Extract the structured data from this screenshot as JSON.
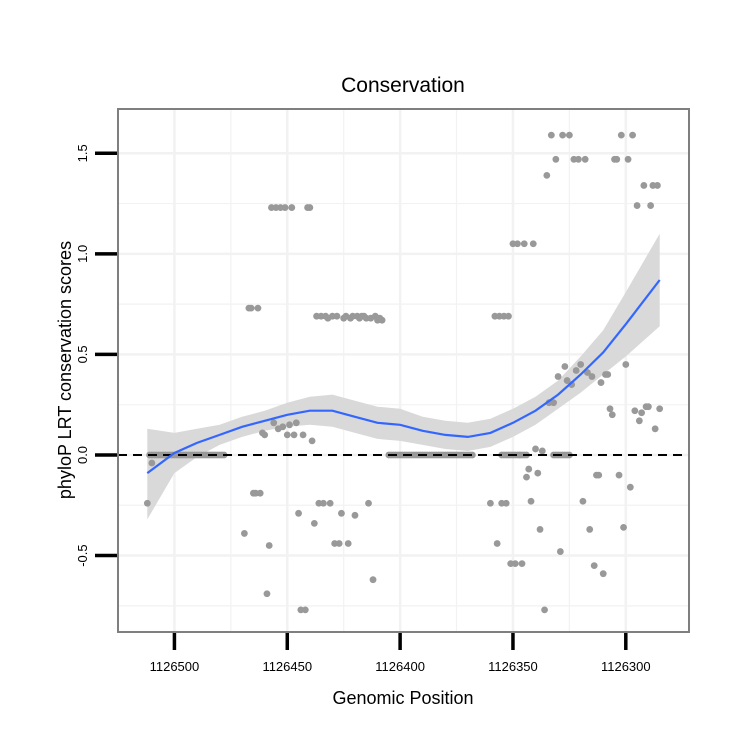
{
  "chart_data": {
    "type": "scatter",
    "title": "Conservation",
    "xlabel": "Genomic Position",
    "ylabel": "phyloP LRT conservation scores",
    "x_reversed": true,
    "xlim": [
      1126525,
      1126272
    ],
    "ylim": [
      -0.88,
      1.72
    ],
    "x_ticks": [
      1126500,
      1126450,
      1126400,
      1126350,
      1126300
    ],
    "x_tick_labels": [
      "1126500",
      "1126450",
      "1126400",
      "1126350",
      "1126300"
    ],
    "y_ticks": [
      -0.5,
      0,
      0.5,
      1,
      1.5
    ],
    "y_tick_labels": [
      "-0.5",
      "0.0",
      "0.5",
      "1.0",
      "1.5"
    ],
    "grid": true,
    "reference_line": {
      "y": 0,
      "style": "dashed",
      "color": "#000000"
    },
    "colors": {
      "points": "#999999",
      "smooth": "#3366ff",
      "ribbon": "#d9d9d9",
      "panel_border": "#7f7f7f",
      "grid": "#f2f2f2"
    },
    "zero_runs": [
      [
        1126511,
        1126478
      ],
      [
        1126405,
        1126368
      ],
      [
        1126355,
        1126344
      ],
      [
        1126332,
        1126325
      ]
    ],
    "points": [
      [
        1126512,
        -0.24
      ],
      [
        1126510,
        -0.04
      ],
      [
        1126469,
        -0.39
      ],
      [
        1126467,
        0.73
      ],
      [
        1126466,
        0.73
      ],
      [
        1126465,
        -0.19
      ],
      [
        1126464,
        -0.19
      ],
      [
        1126463,
        0.73
      ],
      [
        1126462,
        -0.19
      ],
      [
        1126461,
        0.11
      ],
      [
        1126460,
        0.1
      ],
      [
        1126459,
        -0.69
      ],
      [
        1126458,
        -0.45
      ],
      [
        1126457,
        1.23
      ],
      [
        1126456,
        0.16
      ],
      [
        1126455,
        1.23
      ],
      [
        1126454,
        0.13
      ],
      [
        1126453,
        1.23
      ],
      [
        1126452,
        0.14
      ],
      [
        1126451,
        1.23
      ],
      [
        1126450,
        0.1
      ],
      [
        1126449,
        0.15
      ],
      [
        1126448,
        1.23
      ],
      [
        1126447,
        0.1
      ],
      [
        1126446,
        0.16
      ],
      [
        1126445,
        -0.29
      ],
      [
        1126444,
        -0.77
      ],
      [
        1126443,
        0.1
      ],
      [
        1126442,
        -0.77
      ],
      [
        1126441,
        1.23
      ],
      [
        1126440,
        1.23
      ],
      [
        1126439,
        0.07
      ],
      [
        1126438,
        -0.34
      ],
      [
        1126437,
        0.69
      ],
      [
        1126436,
        -0.24
      ],
      [
        1126435,
        0.69
      ],
      [
        1126434,
        -0.24
      ],
      [
        1126433,
        0.69
      ],
      [
        1126432,
        0.68
      ],
      [
        1126431,
        -0.24
      ],
      [
        1126430,
        0.69
      ],
      [
        1126429,
        -0.44
      ],
      [
        1126428,
        0.69
      ],
      [
        1126427,
        -0.44
      ],
      [
        1126426,
        -0.29
      ],
      [
        1126425,
        0.68
      ],
      [
        1126424,
        0.69
      ],
      [
        1126423,
        -0.44
      ],
      [
        1126422,
        0.68
      ],
      [
        1126421,
        0.69
      ],
      [
        1126420,
        -0.3
      ],
      [
        1126419,
        0.69
      ],
      [
        1126418,
        0.68
      ],
      [
        1126417,
        0.69
      ],
      [
        1126416,
        0.69
      ],
      [
        1126415,
        0.68
      ],
      [
        1126414,
        -0.24
      ],
      [
        1126413,
        0.68
      ],
      [
        1126412,
        -0.62
      ],
      [
        1126411,
        0.69
      ],
      [
        1126410,
        0.67
      ],
      [
        1126409,
        0.68
      ],
      [
        1126408,
        0.67
      ],
      [
        1126360,
        -0.24
      ],
      [
        1126358,
        0.69
      ],
      [
        1126357,
        -0.44
      ],
      [
        1126356,
        0.69
      ],
      [
        1126355,
        -0.24
      ],
      [
        1126354,
        0.69
      ],
      [
        1126353,
        -0.24
      ],
      [
        1126352,
        0.69
      ],
      [
        1126351,
        -0.54
      ],
      [
        1126350,
        1.05
      ],
      [
        1126349,
        -0.54
      ],
      [
        1126348,
        1.05
      ],
      [
        1126347,
        0.0
      ],
      [
        1126346,
        -0.54
      ],
      [
        1126345,
        1.05
      ],
      [
        1126344,
        -0.11
      ],
      [
        1126343,
        -0.07
      ],
      [
        1126342,
        -0.23
      ],
      [
        1126341,
        1.05
      ],
      [
        1126340,
        0.03
      ],
      [
        1126339,
        -0.09
      ],
      [
        1126338,
        -0.37
      ],
      [
        1126337,
        0.02
      ],
      [
        1126336,
        -0.77
      ],
      [
        1126335,
        1.39
      ],
      [
        1126334,
        0.26
      ],
      [
        1126333,
        1.59
      ],
      [
        1126332,
        0.26
      ],
      [
        1126331,
        1.47
      ],
      [
        1126330,
        0.39
      ],
      [
        1126329,
        -0.48
      ],
      [
        1126328,
        1.59
      ],
      [
        1126327,
        0.44
      ],
      [
        1126326,
        0.37
      ],
      [
        1126325,
        1.59
      ],
      [
        1126324,
        0.35
      ],
      [
        1126323,
        1.47
      ],
      [
        1126322,
        0.42
      ],
      [
        1126321,
        1.47
      ],
      [
        1126320,
        0.45
      ],
      [
        1126319,
        -0.23
      ],
      [
        1126318,
        1.47
      ],
      [
        1126317,
        0.41
      ],
      [
        1126316,
        -0.37
      ],
      [
        1126315,
        0.39
      ],
      [
        1126314,
        -0.55
      ],
      [
        1126313,
        -0.1
      ],
      [
        1126312,
        -0.1
      ],
      [
        1126311,
        0.36
      ],
      [
        1126310,
        -0.59
      ],
      [
        1126309,
        0.4
      ],
      [
        1126308,
        0.4
      ],
      [
        1126307,
        0.23
      ],
      [
        1126306,
        0.2
      ],
      [
        1126305,
        1.47
      ],
      [
        1126304,
        1.47
      ],
      [
        1126303,
        -0.1
      ],
      [
        1126302,
        1.59
      ],
      [
        1126301,
        -0.36
      ],
      [
        1126300,
        0.45
      ],
      [
        1126299,
        1.47
      ],
      [
        1126298,
        -0.16
      ],
      [
        1126297,
        1.59
      ],
      [
        1126296,
        0.22
      ],
      [
        1126295,
        1.24
      ],
      [
        1126294,
        0.17
      ],
      [
        1126293,
        0.21
      ],
      [
        1126292,
        1.34
      ],
      [
        1126291,
        0.24
      ],
      [
        1126290,
        0.24
      ],
      [
        1126289,
        1.24
      ],
      [
        1126288,
        1.34
      ],
      [
        1126287,
        0.13
      ],
      [
        1126286,
        1.34
      ],
      [
        1126285,
        0.23
      ]
    ],
    "smooth_line": {
      "x": [
        1126512,
        1126500,
        1126490,
        1126480,
        1126470,
        1126460,
        1126450,
        1126440,
        1126430,
        1126420,
        1126410,
        1126400,
        1126390,
        1126380,
        1126370,
        1126360,
        1126350,
        1126340,
        1126330,
        1126320,
        1126310,
        1126300,
        1126285
      ],
      "y": [
        -0.09,
        0.01,
        0.06,
        0.1,
        0.14,
        0.17,
        0.2,
        0.22,
        0.22,
        0.19,
        0.16,
        0.15,
        0.12,
        0.1,
        0.09,
        0.11,
        0.16,
        0.22,
        0.3,
        0.4,
        0.51,
        0.65,
        0.87
      ],
      "lower": [
        -0.32,
        -0.09,
        -0.01,
        0.05,
        0.09,
        0.12,
        0.14,
        0.15,
        0.14,
        0.11,
        0.08,
        0.07,
        0.05,
        0.03,
        0.02,
        0.04,
        0.09,
        0.15,
        0.23,
        0.31,
        0.4,
        0.49,
        0.64
      ],
      "upper": [
        0.13,
        0.11,
        0.13,
        0.15,
        0.19,
        0.22,
        0.26,
        0.29,
        0.3,
        0.27,
        0.24,
        0.23,
        0.19,
        0.17,
        0.16,
        0.18,
        0.23,
        0.29,
        0.37,
        0.49,
        0.62,
        0.81,
        1.1
      ]
    }
  }
}
